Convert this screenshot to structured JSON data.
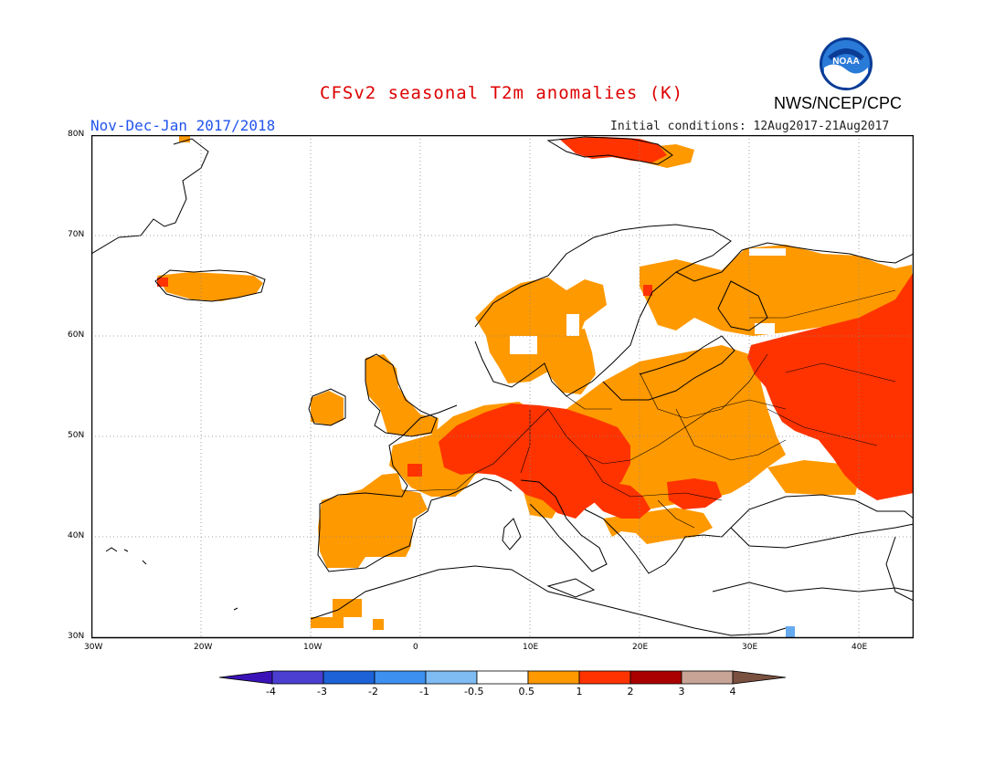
{
  "title": "CFSv2 seasonal T2m anomalies (K)",
  "period": "Nov-Dec-Jan 2017/2018",
  "initial_conditions": "Initial conditions: 12Aug2017-21Aug2017",
  "organization": "NWS/NCEP/CPC",
  "logo": {
    "text": "NOAA",
    "icon": "noaa-logo-icon"
  },
  "colors": {
    "title": "#dd0000",
    "period": "#2255ee",
    "anom_0_5_1": "#ff9900",
    "anom_1_2": "#ff3300",
    "anom_2_3": "#aa0000",
    "anom_neg_0_5_1": "#66aaf0",
    "coast": "#000000",
    "grid": "#888888"
  },
  "map": {
    "lon_range": [
      -30,
      45
    ],
    "lat_range": [
      30,
      80
    ],
    "lon_ticks": [
      "30W",
      "20W",
      "10W",
      "0",
      "10E",
      "20E",
      "30E",
      "40E"
    ],
    "lat_ticks": [
      "80N",
      "70N",
      "60N",
      "50N",
      "40N",
      "30N"
    ]
  },
  "legend": {
    "labels": [
      "-4",
      "-3",
      "-2",
      "-1",
      "-0.5",
      "0.5",
      "1",
      "2",
      "3",
      "4"
    ],
    "colors": [
      "#3b12b8",
      "#4a3fd0",
      "#1d62d6",
      "#3e90f0",
      "#7fbcf4",
      "#ffffff",
      "#ff9900",
      "#ff3300",
      "#aa0000",
      "#c8a497",
      "#7a5040"
    ]
  },
  "anomaly_regions": [
    {
      "name": "Iberia",
      "category": "0.5-1"
    },
    {
      "name": "France / Benelux / British Isles",
      "category": "0.5-1"
    },
    {
      "name": "Central Europe / Alps",
      "category": "1-2"
    },
    {
      "name": "Balkans / Carpathians",
      "category": "1-2"
    },
    {
      "name": "Scandinavia / Finland",
      "category": "0.5-1"
    },
    {
      "name": "Eastern Europe / Baltics",
      "category": "0.5-1"
    },
    {
      "name": "Western Russia",
      "category": "1-2"
    },
    {
      "name": "Svalbard",
      "category": "1-2"
    },
    {
      "name": "Iceland",
      "category": "0.5-1"
    },
    {
      "name": "Eastern Mediterranean coast",
      "category": "-0.5 to -1"
    }
  ]
}
